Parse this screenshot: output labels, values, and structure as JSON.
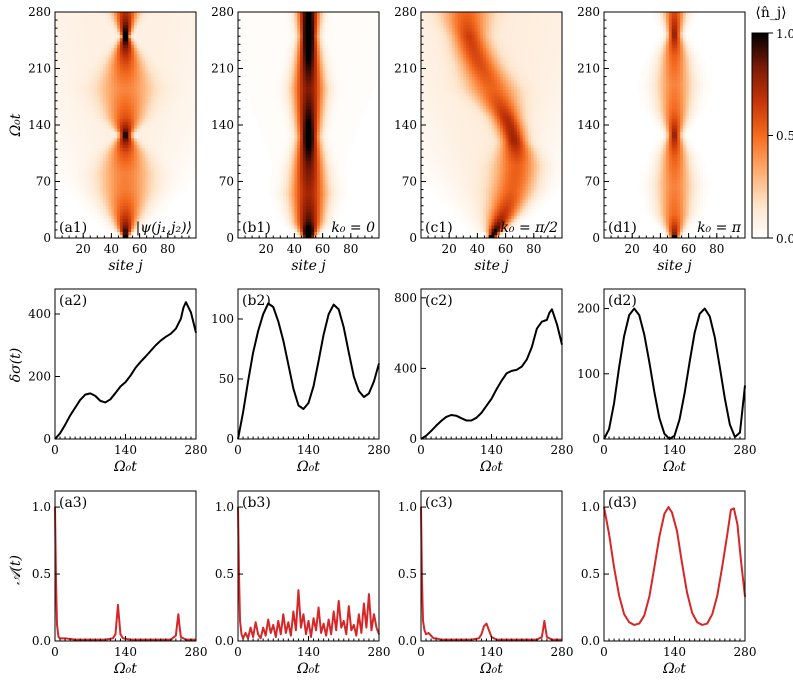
{
  "figure": {
    "colorbar": {
      "label": "⟨n̂_j⟩",
      "ticks": [
        "0.0",
        "0.5",
        "1.0"
      ],
      "range": [
        0,
        1
      ],
      "colormap": [
        "#ffffff",
        "#fde3c8",
        "#fdaa6b",
        "#f46b1f",
        "#c53408",
        "#7a1a05",
        "#000000"
      ]
    },
    "x_site_label": "site j",
    "x_time_label": "Ω₀t",
    "y_time_label": "Ω₀t",
    "y_sigma_label": "δσ(t)",
    "y_A_label": "𝒜(t)"
  },
  "chart_data": [
    {
      "type": "heatmap",
      "panel": "(a1)",
      "annotation": "|ψ(j₁,j₂)⟩",
      "xlabel": "site j",
      "ylabel": "Ω₀t",
      "xlim": [
        0,
        100
      ],
      "ylim": [
        0,
        280
      ],
      "xticks": [
        "20",
        "40",
        "60",
        "80"
      ],
      "yticks": [
        "0",
        "70",
        "140",
        "210",
        "280"
      ],
      "width_profile": [
        [
          0,
          2
        ],
        [
          30,
          12
        ],
        [
          60,
          21
        ],
        [
          80,
          22
        ],
        [
          105,
          14
        ],
        [
          128,
          4
        ],
        [
          150,
          14
        ],
        [
          185,
          23
        ],
        [
          215,
          14
        ],
        [
          250,
          3
        ],
        [
          280,
          10
        ]
      ],
      "peak_density": 0.55,
      "halo": 0.25,
      "drift": 0
    },
    {
      "type": "heatmap",
      "panel": "(b1)",
      "annotation": "k₀ = 0",
      "xlabel": "site j",
      "xlim": [
        0,
        100
      ],
      "ylim": [
        0,
        280
      ],
      "xticks": [
        "20",
        "40",
        "60",
        "80"
      ],
      "yticks": [
        "0",
        "70",
        "140",
        "210",
        "280"
      ],
      "width_profile": [
        [
          0,
          4
        ],
        [
          20,
          11
        ],
        [
          55,
          15
        ],
        [
          90,
          12
        ],
        [
          125,
          8
        ],
        [
          150,
          10
        ],
        [
          185,
          13
        ],
        [
          215,
          10
        ],
        [
          250,
          7
        ],
        [
          280,
          9
        ]
      ],
      "peak_density": 0.85,
      "halo": 0.05,
      "drift": 0
    },
    {
      "type": "heatmap",
      "panel": "(c1)",
      "annotation": "k₀ = π/2",
      "xlabel": "site j",
      "xlim": [
        0,
        100
      ],
      "ylim": [
        0,
        280
      ],
      "xticks": [
        "20",
        "40",
        "60",
        "80"
      ],
      "yticks": [
        "0",
        "70",
        "140",
        "210",
        "280"
      ],
      "width_profile": [
        [
          0,
          3
        ],
        [
          30,
          12
        ],
        [
          60,
          18
        ],
        [
          90,
          18
        ],
        [
          120,
          10
        ],
        [
          150,
          12
        ],
        [
          185,
          20
        ],
        [
          215,
          16
        ],
        [
          250,
          14
        ],
        [
          280,
          20
        ]
      ],
      "peak_density": 0.6,
      "halo": 0.3,
      "drift": 18
    },
    {
      "type": "heatmap",
      "panel": "(d1)",
      "annotation": "k₀ = π",
      "xlabel": "site j",
      "xlim": [
        0,
        100
      ],
      "ylim": [
        0,
        280
      ],
      "xticks": [
        "20",
        "40",
        "60",
        "80"
      ],
      "yticks": [
        "0",
        "70",
        "140",
        "210",
        "280"
      ],
      "width_profile": [
        [
          0,
          3
        ],
        [
          30,
          12
        ],
        [
          65,
          15
        ],
        [
          100,
          11
        ],
        [
          128,
          5
        ],
        [
          160,
          12
        ],
        [
          190,
          15
        ],
        [
          225,
          11
        ],
        [
          252,
          5
        ],
        [
          280,
          9
        ]
      ],
      "peak_density": 0.5,
      "halo": 0.02,
      "drift": 0
    },
    {
      "type": "line",
      "panel": "(a2)",
      "xlabel": "Ω₀t",
      "ylabel": "δσ(t)",
      "xlim": [
        0,
        280
      ],
      "ylim": [
        0,
        480
      ],
      "xticks": [
        0,
        140,
        280
      ],
      "yticks": [
        0,
        200,
        400
      ],
      "color": "#000000",
      "x": [
        0,
        10,
        20,
        30,
        40,
        50,
        60,
        70,
        80,
        90,
        100,
        110,
        120,
        130,
        140,
        150,
        160,
        170,
        180,
        190,
        200,
        210,
        220,
        230,
        240,
        250,
        255,
        260,
        270,
        280
      ],
      "y": [
        0,
        18,
        45,
        75,
        100,
        125,
        142,
        146,
        138,
        122,
        117,
        127,
        147,
        168,
        182,
        203,
        228,
        247,
        264,
        282,
        300,
        315,
        327,
        337,
        353,
        385,
        420,
        438,
        405,
        340
      ]
    },
    {
      "type": "line",
      "panel": "(b2)",
      "xlabel": "Ω₀t",
      "xlim": [
        0,
        280
      ],
      "ylim": [
        0,
        125
      ],
      "xticks": [
        0,
        140,
        280
      ],
      "yticks": [
        0,
        50,
        100
      ],
      "color": "#000000",
      "x": [
        0,
        10,
        20,
        30,
        40,
        50,
        60,
        70,
        80,
        90,
        100,
        110,
        120,
        130,
        140,
        150,
        160,
        170,
        180,
        190,
        200,
        210,
        220,
        230,
        240,
        250,
        260,
        270,
        280
      ],
      "y": [
        0,
        22,
        48,
        72,
        90,
        104,
        113,
        110,
        98,
        82,
        62,
        42,
        28,
        25,
        30,
        44,
        65,
        87,
        104,
        112,
        108,
        93,
        72,
        52,
        40,
        35,
        38,
        48,
        63
      ]
    },
    {
      "type": "line",
      "panel": "(c2)",
      "xlabel": "Ω₀t",
      "xlim": [
        0,
        280
      ],
      "ylim": [
        0,
        850
      ],
      "xticks": [
        0,
        140,
        280
      ],
      "yticks": [
        0,
        400,
        800
      ],
      "color": "#000000",
      "x": [
        0,
        10,
        20,
        30,
        40,
        50,
        60,
        70,
        80,
        90,
        100,
        110,
        120,
        130,
        140,
        150,
        160,
        170,
        180,
        190,
        200,
        210,
        220,
        230,
        240,
        250,
        255,
        260,
        270,
        280
      ],
      "y": [
        0,
        18,
        45,
        75,
        102,
        125,
        136,
        132,
        118,
        105,
        105,
        120,
        148,
        188,
        228,
        282,
        330,
        372,
        386,
        392,
        410,
        450,
        520,
        625,
        665,
        675,
        715,
        735,
        650,
        535
      ]
    },
    {
      "type": "line",
      "panel": "(d2)",
      "xlabel": "Ω₀t",
      "xlim": [
        0,
        280
      ],
      "ylim": [
        0,
        230
      ],
      "xticks": [
        0,
        140,
        280
      ],
      "yticks": [
        0,
        100,
        200
      ],
      "color": "#000000",
      "x": [
        0,
        10,
        20,
        30,
        40,
        50,
        60,
        70,
        80,
        90,
        100,
        110,
        120,
        130,
        140,
        150,
        160,
        170,
        180,
        190,
        200,
        210,
        220,
        230,
        240,
        250,
        260,
        270,
        280
      ],
      "y": [
        0,
        15,
        55,
        110,
        158,
        190,
        200,
        190,
        160,
        118,
        72,
        32,
        8,
        0,
        5,
        30,
        70,
        118,
        163,
        192,
        200,
        188,
        156,
        110,
        62,
        22,
        3,
        10,
        82
      ]
    },
    {
      "type": "line",
      "panel": "(a3)",
      "xlabel": "Ω₀t",
      "ylabel": "𝒜(t)",
      "xlim": [
        0,
        280
      ],
      "ylim": [
        0,
        1.12
      ],
      "xticks": [
        0,
        140,
        280
      ],
      "yticks": [
        "0.0",
        "0.5",
        "1.0"
      ],
      "color": "#d62728",
      "x": [
        0,
        2,
        4,
        7,
        10,
        20,
        40,
        60,
        80,
        100,
        115,
        120,
        123,
        125,
        127,
        130,
        135,
        150,
        180,
        210,
        230,
        240,
        243,
        245,
        247,
        250,
        260,
        280
      ],
      "y": [
        1,
        0.45,
        0.12,
        0.03,
        0.02,
        0.02,
        0.01,
        0.01,
        0.01,
        0.01,
        0.02,
        0.05,
        0.18,
        0.27,
        0.18,
        0.05,
        0.02,
        0.01,
        0.01,
        0.01,
        0.01,
        0.04,
        0.14,
        0.2,
        0.12,
        0.03,
        0.01,
        0.01
      ]
    },
    {
      "type": "line",
      "panel": "(b3)",
      "xlabel": "Ω₀t",
      "xlim": [
        0,
        280
      ],
      "ylim": [
        0,
        1.12
      ],
      "xticks": [
        0,
        140,
        280
      ],
      "yticks": [
        "0.0",
        "0.5",
        "1.0"
      ],
      "color": "#d62728",
      "x": [
        0,
        2,
        4,
        7,
        10,
        15,
        20,
        25,
        30,
        35,
        40,
        45,
        50,
        55,
        60,
        65,
        70,
        75,
        80,
        85,
        90,
        95,
        100,
        105,
        110,
        115,
        120,
        125,
        130,
        135,
        140,
        145,
        150,
        155,
        160,
        165,
        170,
        175,
        180,
        185,
        190,
        195,
        200,
        205,
        210,
        215,
        220,
        225,
        230,
        235,
        240,
        245,
        250,
        255,
        260,
        265,
        270,
        275,
        280
      ],
      "y": [
        1,
        0.5,
        0.15,
        0.05,
        0.02,
        0.06,
        0.02,
        0.1,
        0.03,
        0.14,
        0.05,
        0.02,
        0.1,
        0.04,
        0.16,
        0.06,
        0.12,
        0.03,
        0.15,
        0.05,
        0.2,
        0.06,
        0.14,
        0.04,
        0.22,
        0.08,
        0.38,
        0.1,
        0.2,
        0.05,
        0.15,
        0.03,
        0.17,
        0.08,
        0.25,
        0.06,
        0.13,
        0.04,
        0.16,
        0.05,
        0.22,
        0.08,
        0.3,
        0.1,
        0.15,
        0.05,
        0.26,
        0.08,
        0.12,
        0.04,
        0.2,
        0.06,
        0.28,
        0.1,
        0.35,
        0.08,
        0.2,
        0.1,
        0.05
      ]
    },
    {
      "type": "line",
      "panel": "(c3)",
      "xlabel": "Ω₀t",
      "xlim": [
        0,
        280
      ],
      "ylim": [
        0,
        1.12
      ],
      "xticks": [
        0,
        140,
        280
      ],
      "yticks": [
        "0.0",
        "0.5",
        "1.0"
      ],
      "color": "#d62728",
      "x": [
        0,
        2,
        4,
        7,
        10,
        15,
        20,
        25,
        30,
        40,
        60,
        80,
        100,
        115,
        120,
        125,
        130,
        135,
        140,
        150,
        180,
        210,
        230,
        240,
        243,
        245,
        247,
        250,
        260,
        280
      ],
      "y": [
        1,
        0.45,
        0.15,
        0.08,
        0.05,
        0.06,
        0.04,
        0.02,
        0.02,
        0.01,
        0.01,
        0.01,
        0.01,
        0.02,
        0.05,
        0.11,
        0.13,
        0.08,
        0.03,
        0.01,
        0.01,
        0.01,
        0.01,
        0.03,
        0.1,
        0.15,
        0.1,
        0.03,
        0.01,
        0.01
      ]
    },
    {
      "type": "line",
      "panel": "(d3)",
      "xlabel": "Ω₀t",
      "xlim": [
        0,
        280
      ],
      "ylim": [
        0,
        1.12
      ],
      "xticks": [
        0,
        140,
        280
      ],
      "yticks": [
        "0.0",
        "0.5",
        "1.0"
      ],
      "color": "#d62728",
      "x": [
        0,
        10,
        20,
        30,
        40,
        50,
        60,
        70,
        80,
        90,
        100,
        110,
        120,
        128,
        135,
        145,
        155,
        165,
        175,
        185,
        195,
        205,
        215,
        225,
        235,
        245,
        252,
        258,
        265,
        272,
        280
      ],
      "y": [
        1,
        0.8,
        0.55,
        0.34,
        0.2,
        0.14,
        0.12,
        0.13,
        0.19,
        0.33,
        0.55,
        0.78,
        0.95,
        1,
        0.96,
        0.82,
        0.58,
        0.36,
        0.21,
        0.14,
        0.12,
        0.13,
        0.2,
        0.34,
        0.56,
        0.8,
        0.98,
        0.99,
        0.87,
        0.6,
        0.33
      ]
    }
  ]
}
